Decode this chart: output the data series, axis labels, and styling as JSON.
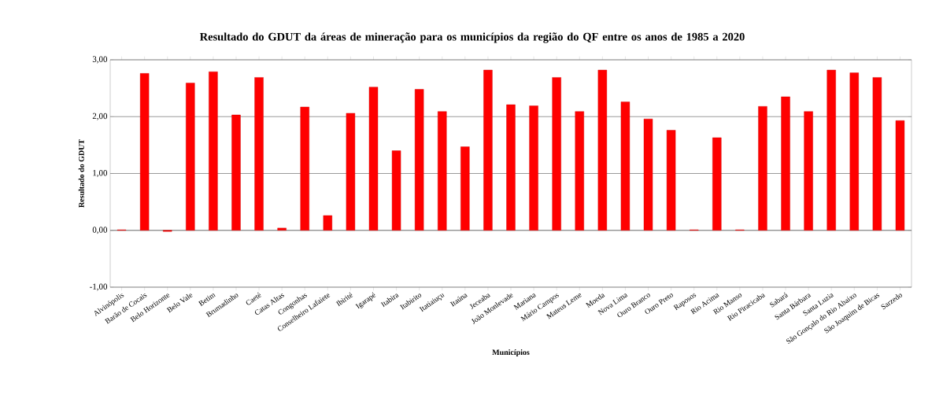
{
  "chart_data": {
    "type": "bar",
    "title": "Resultado do GDUT da áreas de mineração para os municípios da região do QF entre os anos de 1985 a 2020",
    "xlabel": "Municípios",
    "ylabel": "Resultado do GDUT",
    "categories": [
      "Alvinópolis",
      "Barão de Cocais",
      "Belo Horizonte",
      "Belo Vale",
      "Betim",
      "Brumadinho",
      "Caeté",
      "Catas Altas",
      "Congonhas",
      "Conselheiro Lafaiete",
      "Ibirité",
      "Igarapé",
      "Itabira",
      "Itabirito",
      "Itatiaiuçu",
      "Itaúna",
      "Jeceaba",
      "João Monlevade",
      "Mariana",
      "Mário Campos",
      "Mateus Leme",
      "Moeda",
      "Nova Lima",
      "Ouro Branco",
      "Ouro Preto",
      "Raposos",
      "Rio Acima",
      "Rio Manso",
      "Rio Piracicaba",
      "Sabará",
      "Santa Bárbara",
      "Santa Luzia",
      "São Gonçalo do Rio Abaixo",
      "São Joaquim de Bicas",
      "Sarzedo"
    ],
    "values": [
      0.01,
      2.76,
      -0.02,
      2.59,
      2.79,
      2.03,
      2.69,
      0.04,
      2.17,
      0.26,
      2.06,
      2.52,
      1.4,
      2.48,
      2.09,
      1.47,
      2.82,
      2.21,
      2.19,
      2.69,
      2.09,
      2.82,
      2.26,
      1.96,
      1.76,
      0.01,
      1.63,
      0.01,
      2.18,
      2.35,
      2.09,
      2.82,
      2.77,
      2.69,
      1.93
    ],
    "color": "#ff0000",
    "ylim": [
      -1,
      3
    ],
    "yticks": [
      {
        "value": -1,
        "label": "-1,00"
      },
      {
        "value": 0,
        "label": "0,00"
      },
      {
        "value": 1,
        "label": "1,00"
      },
      {
        "value": 2,
        "label": "2,00"
      },
      {
        "value": 3,
        "label": "3,00"
      }
    ],
    "grid": "y"
  }
}
